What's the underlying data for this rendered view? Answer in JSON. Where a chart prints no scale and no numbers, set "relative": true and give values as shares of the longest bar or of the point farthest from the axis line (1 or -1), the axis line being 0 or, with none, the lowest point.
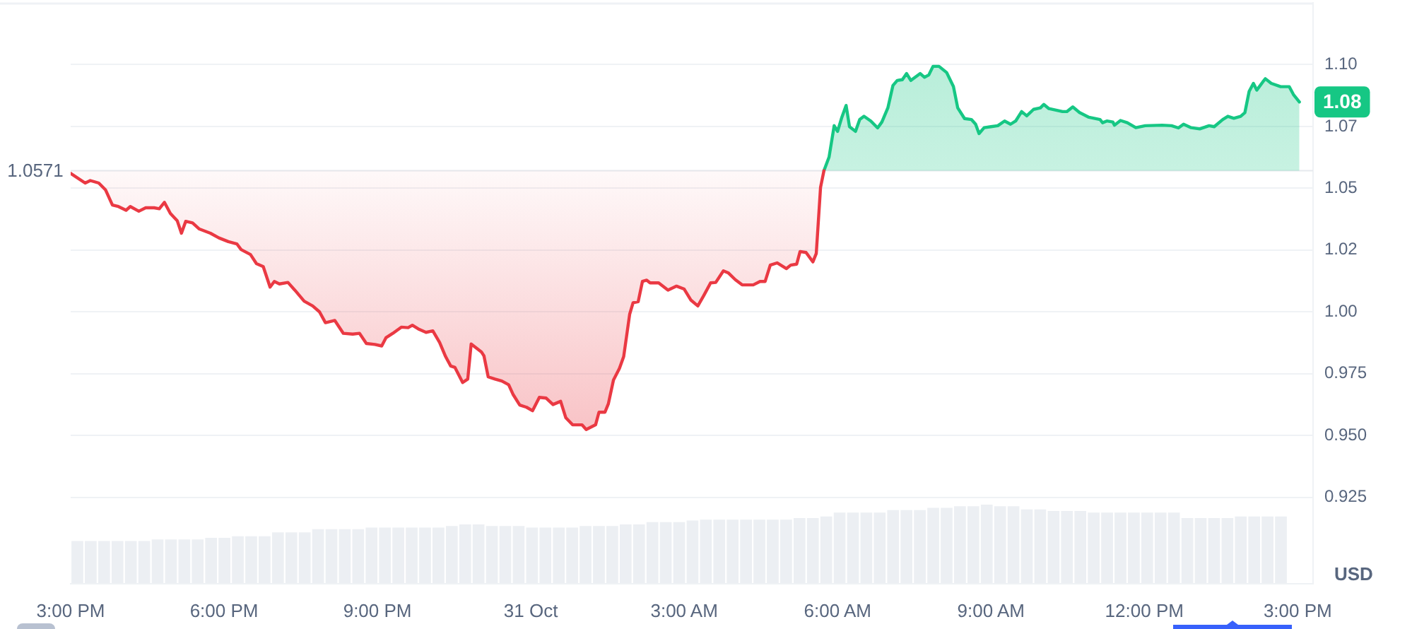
{
  "chart_data": [
    {
      "type": "area",
      "ylabel": "USD",
      "xlim": [
        "--10-30T15:00",
        "--10-31T15:18"
      ],
      "xticks": [
        {
          "value": "--10-30T15:00",
          "label": "3:00 PM"
        },
        {
          "value": "--10-30T18:00",
          "label": "6:00 PM"
        },
        {
          "value": "--10-30T21:00",
          "label": "9:00 PM"
        },
        {
          "value": "--10-31T00:00",
          "label": "31 Oct"
        },
        {
          "value": "--10-31T03:00",
          "label": "3:00 AM"
        },
        {
          "value": "--10-31T06:00",
          "label": "6:00 AM"
        },
        {
          "value": "--10-31T09:00",
          "label": "9:00 AM"
        },
        {
          "value": "--10-31T12:00",
          "label": "12:00 PM"
        },
        {
          "value": "--10-31T15:00",
          "label": "3:00 PM"
        }
      ],
      "ylim": [
        0.89,
        1.125
      ],
      "yticks": [
        0.925,
        {
          "value": 0.95,
          "label": "0.950"
        },
        0.975,
        {
          "value": 1.0,
          "label": "1.00"
        },
        {
          "value": 1.025,
          "label": "1.02"
        },
        1.05,
        {
          "value": 1.075,
          "label": "1.07"
        },
        {
          "value": 1.1,
          "label": "1.10"
        }
      ],
      "grid": "y",
      "ref_lines": [
        {
          "axis": "y",
          "value": 1.0571,
          "label": "1.0571"
        }
      ],
      "series": [
        {
          "color": "#ea3943",
          "x": [
            "--10-30T15:00",
            "--10-30T15:17",
            "--10-30T15:23",
            "--10-30T15:33",
            "--10-30T15:41",
            "--10-30T15:49",
            "--10-30T15:56",
            "--10-30T16:05",
            "--10-30T16:10",
            "--10-30T16:20",
            "--10-30T16:28",
            "--10-30T16:38",
            "--10-30T16:44",
            "--10-30T16:50",
            "--10-30T16:57",
            "--10-30T17:05",
            "--10-30T17:10",
            "--10-30T17:15",
            "--10-30T17:23",
            "--10-30T17:31",
            "--10-30T17:44",
            "--10-30T17:54",
            "--10-30T18:05",
            "--10-30T18:15",
            "--10-30T18:20",
            "--10-30T18:31",
            "--10-30T18:38",
            "--10-30T18:46",
            "--10-30T18:54",
            "--10-30T18:59",
            "--10-30T19:05",
            "--10-30T19:15",
            "--10-30T19:23",
            "--10-30T19:34",
            "--10-30T19:44",
            "--10-30T19:52",
            "--10-30T19:59",
            "--10-30T20:10",
            "--10-30T20:20",
            "--10-30T20:31",
            "--10-30T20:39",
            "--10-30T20:47",
            "--10-30T20:57",
            "--10-30T21:05",
            "--10-30T21:10",
            "--10-30T21:18",
            "--10-30T21:28",
            "--10-30T21:36",
            "--10-30T21:41",
            "--10-30T21:49",
            "--10-30T21:57",
            "--10-30T22:05",
            "--10-30T22:13",
            "--10-30T22:20",
            "--10-30T22:26",
            "--10-30T22:31",
            "--10-30T22:40",
            "--10-30T22:46",
            "--10-30T22:50",
            "--10-30T23:02",
            "--10-30T23:05",
            "--10-30T23:10",
            "--10-30T23:18",
            "--10-30T23:26",
            "--10-30T23:34",
            "--10-30T23:39",
            "--10-30T23:47",
            "--10-30T23:55",
            "--10-31T00:02",
            "--10-31T00:10",
            "--10-31T00:18",
            "--10-31T00:26",
            "--10-31T00:35",
            "--10-31T00:41",
            "--10-31T00:49",
            "--10-31T01:00",
            "--10-31T01:05",
            "--10-31T01:16",
            "--10-31T01:20",
            "--10-31T01:27",
            "--10-31T01:31",
            "--10-31T01:37",
            "--10-31T01:44",
            "--10-31T01:49",
            "--10-31T01:56",
            "--10-31T02:00",
            "--10-31T02:06",
            "--10-31T02:11",
            "--10-31T02:16",
            "--10-31T02:20",
            "--10-31T02:30",
            "--10-31T02:41",
            "--10-31T02:51",
            "--10-31T03:00",
            "--10-31T03:08",
            "--10-31T03:16",
            "--10-31T03:23",
            "--10-31T03:31",
            "--10-31T03:37",
            "--10-31T03:46",
            "--10-31T03:52",
            "--10-31T04:00",
            "--10-31T04:08",
            "--10-31T04:21",
            "--10-31T04:29",
            "--10-31T04:35",
            "--10-31T04:41",
            "--10-31T04:49",
            "--10-31T05:00",
            "--10-31T05:05",
            "--10-31T05:12",
            "--10-31T05:16",
            "--10-31T05:23",
            "--10-31T05:31",
            "--10-31T05:35",
            "--10-31T05:40",
            "--10-31T05:44"
          ],
          "values": [
            1.056,
            1.0521,
            1.0531,
            1.0521,
            1.0493,
            1.0432,
            1.0426,
            1.0411,
            1.0426,
            1.0407,
            1.0421,
            1.0421,
            1.0417,
            1.0443,
            1.0398,
            1.0369,
            1.0318,
            1.0366,
            1.036,
            1.0335,
            1.0318,
            1.0299,
            1.0284,
            1.0275,
            1.0252,
            1.0232,
            1.0195,
            1.0183,
            1.01,
            1.0123,
            1.0113,
            1.0119,
            1.0088,
            1.0043,
            1.0024,
            1.0,
            0.9956,
            0.9965,
            0.9913,
            0.991,
            0.9913,
            0.9872,
            0.9868,
            0.9862,
            0.9895,
            0.9913,
            0.9938,
            0.9936,
            0.9946,
            0.9929,
            0.9917,
            0.9923,
            0.9876,
            0.9819,
            0.9781,
            0.9775,
            0.9714,
            0.9728,
            0.987,
            0.9838,
            0.9822,
            0.9737,
            0.9728,
            0.972,
            0.9705,
            0.9667,
            0.9623,
            0.9614,
            0.96,
            0.9654,
            0.9651,
            0.9625,
            0.9638,
            0.9572,
            0.9543,
            0.9543,
            0.9524,
            0.9543,
            0.9594,
            0.9594,
            0.9628,
            0.9724,
            0.9771,
            0.9819,
            0.999,
            1.0037,
            1.0041,
            1.0123,
            1.0128,
            1.0117,
            1.0117,
            1.0088,
            1.0104,
            1.0092,
            1.0047,
            1.0024,
            1.0066,
            1.0117,
            1.0119,
            1.0166,
            1.0157,
            1.013,
            1.0109,
            1.0109,
            1.0123,
            1.0123,
            1.0189,
            1.0198,
            1.0175,
            1.0189,
            1.0193,
            1.0244,
            1.024,
            1.0202,
            1.0236,
            1.0503,
            1.0571
          ]
        },
        {
          "color": "#16c784",
          "x": [
            "--10-31T05:44",
            "--10-31T05:50",
            "--10-31T05:56",
            "--10-31T06:00",
            "--10-31T06:05",
            "--10-31T06:10",
            "--10-31T06:14",
            "--10-31T06:21",
            "--10-31T06:26",
            "--10-31T06:31",
            "--10-31T06:39",
            "--10-31T06:47",
            "--10-31T06:52",
            "--10-31T06:59",
            "--10-31T07:05",
            "--10-31T07:10",
            "--10-31T07:16",
            "--10-31T07:21",
            "--10-31T07:26",
            "--10-31T07:37",
            "--10-31T07:42",
            "--10-31T07:47",
            "--10-31T07:52",
            "--10-31T07:59",
            "--10-31T08:08",
            "--10-31T08:16",
            "--10-31T08:21",
            "--10-31T08:29",
            "--10-31T08:37",
            "--10-31T08:42",
            "--10-31T08:46",
            "--10-31T08:52",
            "--10-31T09:00",
            "--10-31T09:08",
            "--10-31T09:16",
            "--10-31T09:23",
            "--10-31T09:29",
            "--10-31T09:36",
            "--10-31T09:42",
            "--10-31T09:50",
            "--10-31T09:58",
            "--10-31T10:02",
            "--10-31T10:08",
            "--10-31T10:24",
            "--10-31T10:29",
            "--10-31T10:36",
            "--10-31T10:44",
            "--10-31T10:55",
            "--10-31T11:08",
            "--10-31T11:11",
            "--10-31T11:16",
            "--10-31T11:23",
            "--10-31T11:25",
            "--10-31T11:32",
            "--10-31T11:40",
            "--10-31T11:50",
            "--10-31T12:01",
            "--10-31T12:21",
            "--10-31T12:32",
            "--10-31T12:40",
            "--10-31T12:46",
            "--10-31T12:55",
            "--10-31T13:05",
            "--10-31T13:16",
            "--10-31T13:22",
            "--10-31T13:32",
            "--10-31T13:38",
            "--10-31T13:45",
            "--10-31T13:53",
            "--10-31T13:58",
            "--10-31T14:03",
            "--10-31T14:08",
            "--10-31T14:12",
            "--10-31T14:19",
            "--10-31T14:22",
            "--10-31T14:29",
            "--10-31T14:40",
            "--10-31T14:50",
            "--10-31T14:55",
            "--10-31T15:02"
          ],
          "values": [
            1.0571,
            1.0626,
            1.0753,
            1.073,
            1.0787,
            1.0835,
            1.0749,
            1.073,
            1.0778,
            1.0791,
            1.0772,
            1.0744,
            1.0768,
            1.0825,
            1.0916,
            1.0936,
            1.0939,
            1.0964,
            1.0936,
            1.0964,
            1.0949,
            1.0958,
            1.0993,
            1.0993,
            1.0968,
            1.0911,
            1.0825,
            1.0782,
            1.0778,
            1.0759,
            1.0721,
            1.0745,
            1.0749,
            1.0753,
            1.0772,
            1.0759,
            1.0772,
            1.081,
            1.0793,
            1.0819,
            1.0825,
            1.0839,
            1.0822,
            1.081,
            1.081,
            1.0829,
            1.0806,
            1.0787,
            1.0778,
            1.0765,
            1.0772,
            1.0768,
            1.0755,
            1.0774,
            1.0765,
            1.0745,
            1.0753,
            1.0755,
            1.0753,
            1.0744,
            1.0759,
            1.0745,
            1.074,
            1.0753,
            1.0749,
            1.0778,
            1.0791,
            1.0783,
            1.0791,
            1.0806,
            1.0892,
            1.0924,
            1.0897,
            1.093,
            1.0943,
            1.0924,
            1.0911,
            1.0911,
            1.0879,
            1.0849
          ],
          "value_labels": [
            null,
            null,
            null,
            null,
            null,
            null,
            null,
            null,
            null,
            null,
            null,
            null,
            null,
            null,
            null,
            null,
            null,
            null,
            null,
            null,
            null,
            null,
            null,
            null,
            null,
            null,
            null,
            null,
            null,
            null,
            null,
            null,
            null,
            null,
            null,
            null,
            null,
            null,
            null,
            null,
            null,
            null,
            null,
            null,
            null,
            null,
            null,
            null,
            null,
            null,
            null,
            null,
            null,
            null,
            null,
            null,
            null,
            null,
            null,
            null,
            null,
            null,
            null,
            null,
            null,
            null,
            null,
            null,
            null,
            null,
            null,
            null,
            null,
            null,
            null,
            null,
            null,
            null,
            null,
            "1.08"
          ]
        }
      ]
    },
    {
      "type": "bar",
      "relative": true,
      "color": "#eceff3",
      "categories": [
        null,
        null,
        null,
        null,
        null,
        null,
        null,
        null,
        null,
        null,
        null,
        null,
        null,
        null,
        null,
        null,
        null,
        null,
        null,
        null,
        null,
        null,
        null,
        null,
        null,
        null,
        null,
        null,
        null,
        null,
        null,
        null,
        null,
        null,
        null,
        null,
        null,
        null,
        null,
        null,
        null,
        null,
        null,
        null,
        null,
        null,
        null,
        null,
        null,
        null,
        null,
        null,
        null,
        null,
        null,
        null,
        null,
        null,
        null,
        null,
        null,
        null,
        null,
        null,
        null,
        null,
        null,
        null,
        null,
        null,
        null,
        null,
        null,
        null,
        null,
        null,
        null,
        null,
        null,
        null,
        null,
        null,
        null,
        null,
        null,
        null,
        null,
        null,
        null,
        null,
        null
      ],
      "values": [
        0.54,
        0.54,
        0.54,
        0.54,
        0.54,
        0.54,
        0.56,
        0.56,
        0.56,
        0.56,
        0.58,
        0.58,
        0.6,
        0.6,
        0.6,
        0.65,
        0.65,
        0.65,
        0.69,
        0.69,
        0.69,
        0.69,
        0.71,
        0.71,
        0.71,
        0.71,
        0.71,
        0.71,
        0.73,
        0.75,
        0.75,
        0.73,
        0.73,
        0.73,
        0.71,
        0.71,
        0.71,
        0.71,
        0.73,
        0.73,
        0.73,
        0.75,
        0.75,
        0.78,
        0.78,
        0.78,
        0.8,
        0.81,
        0.81,
        0.81,
        0.81,
        0.81,
        0.81,
        0.81,
        0.83,
        0.83,
        0.85,
        0.9,
        0.9,
        0.9,
        0.9,
        0.93,
        0.93,
        0.93,
        0.96,
        0.96,
        0.98,
        0.98,
        1,
        0.98,
        0.98,
        0.94,
        0.94,
        0.92,
        0.92,
        0.92,
        0.9,
        0.9,
        0.9,
        0.9,
        0.9,
        0.9,
        0.9,
        0.83,
        0.83,
        0.83,
        0.83,
        0.85,
        0.85,
        0.85,
        0.85
      ]
    }
  ]
}
